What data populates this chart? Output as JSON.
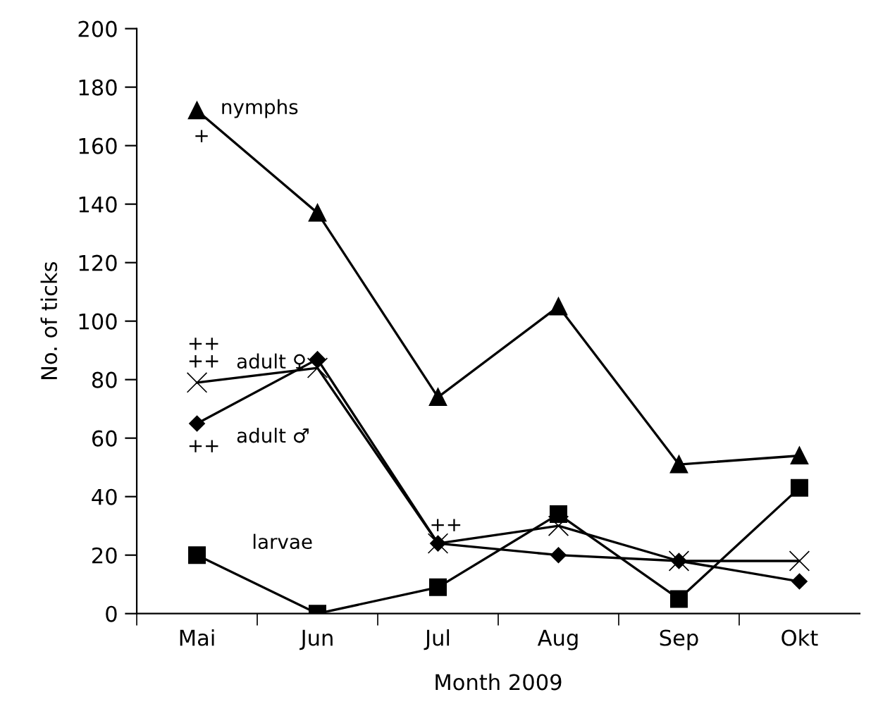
{
  "chart_data": {
    "type": "line",
    "xlabel": "Month 2009",
    "ylabel": "No. of ticks",
    "categories": [
      "Mai",
      "Jun",
      "Jul",
      "Aug",
      "Sep",
      "Okt"
    ],
    "series": [
      {
        "name": "nymphs",
        "color": "#000000",
        "marker": "triangle",
        "values": [
          172,
          137,
          74,
          105,
          51,
          54
        ]
      },
      {
        "name": "adult ♀",
        "color": "#000000",
        "marker": "cross",
        "values": [
          79,
          84,
          24,
          30,
          18,
          18
        ]
      },
      {
        "name": "adult ♂",
        "color": "#000000",
        "marker": "diamond",
        "values": [
          65,
          87,
          24,
          20,
          18,
          11
        ]
      },
      {
        "name": "larvae",
        "color": "#000000",
        "marker": "square",
        "values": [
          20,
          0,
          9,
          34,
          5,
          43
        ]
      }
    ],
    "annotations": [
      "+",
      "++",
      "++",
      "++",
      "++"
    ],
    "ylim": [
      0,
      200
    ],
    "yticks": [
      0,
      20,
      40,
      60,
      80,
      100,
      120,
      140,
      160,
      180,
      200
    ],
    "grid": false,
    "legend": false,
    "line_style": "solid"
  }
}
